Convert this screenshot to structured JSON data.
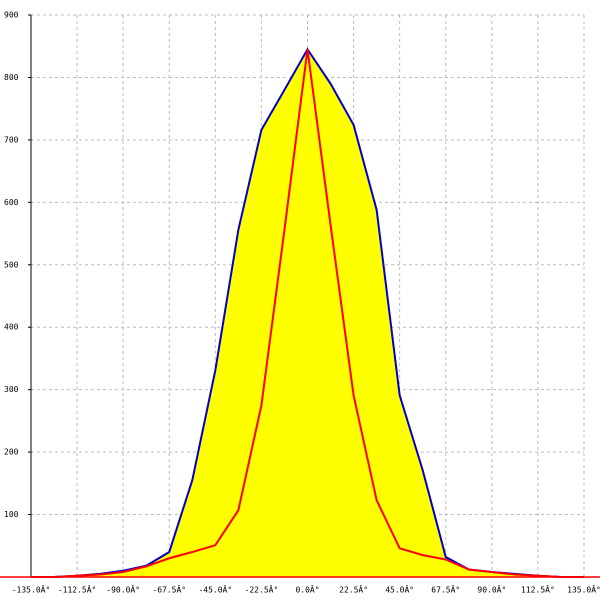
{
  "chart_data": {
    "type": "area",
    "x": [
      -135,
      -123.75,
      -112.5,
      -101.25,
      -90,
      -78.75,
      -67.5,
      -56.25,
      -45,
      -33.75,
      -22.5,
      -11.25,
      0,
      11.25,
      22.5,
      33.75,
      45,
      56.25,
      67.5,
      78.75,
      90,
      101.25,
      112.5,
      123.75,
      135
    ],
    "series": [
      {
        "color": "#0000cc",
        "fill": "#ffff00",
        "values": [
          0,
          0,
          2,
          5,
          10,
          18,
          40,
          155,
          331,
          556,
          716,
          780,
          845,
          790,
          724,
          588,
          291,
          171,
          32,
          12,
          8,
          5,
          2,
          0,
          0
        ]
      },
      {
        "color": "#ff0000",
        "values": [
          0,
          0,
          2,
          4,
          8,
          17,
          30,
          40,
          51,
          107,
          275,
          556,
          845,
          564,
          291,
          123,
          46,
          35,
          28,
          12,
          8,
          4,
          2,
          0,
          0
        ]
      }
    ],
    "xlim": [
      -135,
      135
    ],
    "xticks": [
      {
        "value": -135,
        "label": "-135.0Â°"
      },
      {
        "value": -112.5,
        "label": "-112.5Â°"
      },
      {
        "value": -90,
        "label": "-90.0Â°"
      },
      {
        "value": -67.5,
        "label": "-67.5Â°"
      },
      {
        "value": -45,
        "label": "-45.0Â°"
      },
      {
        "value": -22.5,
        "label": "-22.5Â°"
      },
      {
        "value": 0,
        "label": "0.0Â°"
      },
      {
        "value": 22.5,
        "label": "22.5Â°"
      },
      {
        "value": 45,
        "label": "45.0Â°"
      },
      {
        "value": 67.5,
        "label": "67.5Â°"
      },
      {
        "value": 90,
        "label": "90.0Â°"
      },
      {
        "value": 112.5,
        "label": "112.5Â°"
      },
      {
        "value": 135,
        "label": "135.0Â°"
      }
    ],
    "ylim": [
      0,
      900
    ],
    "yticks": [
      100,
      200,
      300,
      400,
      500,
      600,
      700,
      800,
      900
    ],
    "grid": true
  }
}
